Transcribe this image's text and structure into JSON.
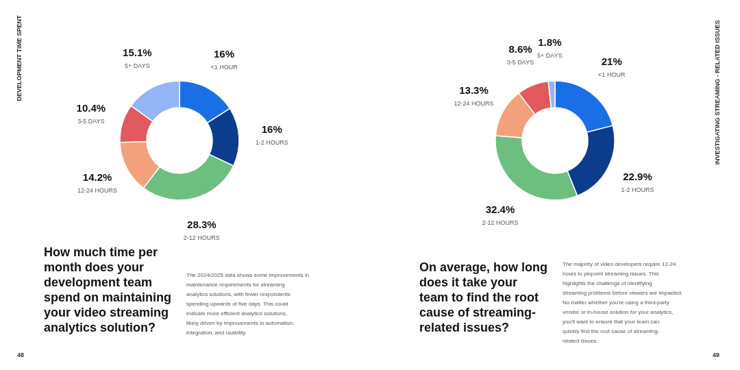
{
  "chart_data": [
    {
      "type": "donut",
      "title": "How much time per month does your development team spend on maintaining your video streaming analytics solution?",
      "annotations": [
        "DEVELOPMENT TIME SPENT",
        "The 2024/2025 data shows some improvements in maintenance requirements for streaming analytics solutions, with fewer respondents spending upwards of five days. This could indicate more efficient analytics solutions, likely driven by improvements in automation, integration, and usability.",
        "48"
      ],
      "categories": [
        "<1 HOUR",
        "1-2 HOURS",
        "2-12 HOURS",
        "12-24 HOURS",
        "3-5 DAYS",
        "5+ DAYS"
      ],
      "values": [
        16,
        16,
        28.3,
        14.2,
        10.4,
        15.1
      ],
      "value_labels": [
        "16%",
        "16%",
        "28.3%",
        "14.2%",
        "10.4%",
        "15.1%"
      ],
      "colors": [
        "#1a6fe6",
        "#0b3d8c",
        "#6cbf7f",
        "#f3a07c",
        "#e15a60",
        "#93b5f5"
      ]
    },
    {
      "type": "donut",
      "title": "On average, how long does it take your team to find the root cause of streaming-related issues?",
      "annotations": [
        "INVESTIGATING STREAMING - RELATED ISSUES",
        "The majority of video developers require 12-24 hours to pinpoint streaming issues. This highlights the challenge of identifying streaming problems before viewers are impacted. No matter whether you're using a third-party vendor or in-house solution for your analytics, you'll want to ensure that your team can quickly find the root cause of streaming-related issues.",
        "49"
      ],
      "categories": [
        "<1 HOUR",
        "1-2 HOURS",
        "2-12 HOURS",
        "12-24 HOURS",
        "3-5 DAYS",
        "5+ DAYS"
      ],
      "values": [
        21,
        22.9,
        32.4,
        13.3,
        8.6,
        1.8
      ],
      "value_labels": [
        "21%",
        "22.9%",
        "32.4%",
        "13.3%",
        "8.6%",
        "1.8%"
      ],
      "colors": [
        "#1a6fe6",
        "#0b3d8c",
        "#6cbf7f",
        "#f3a07c",
        "#e15a60",
        "#93b5f5"
      ]
    }
  ]
}
